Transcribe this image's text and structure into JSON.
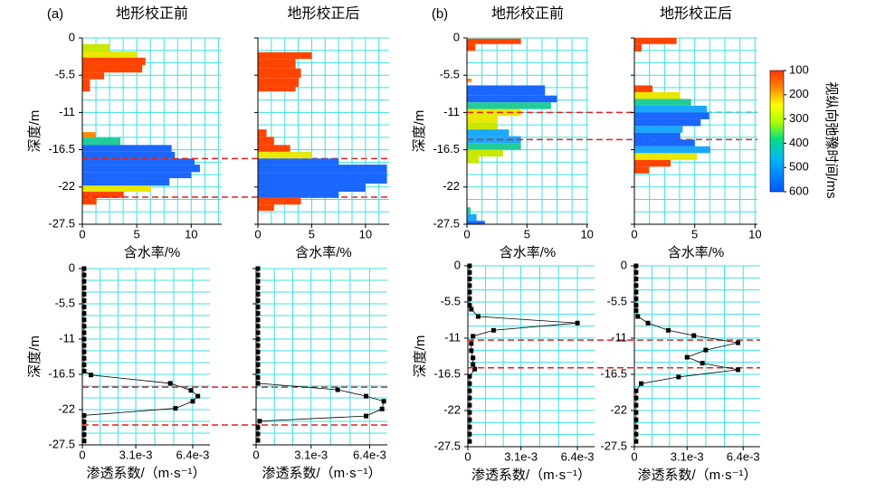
{
  "chart_data": [
    {
      "type": "hbar",
      "panel": "(a)",
      "title": "地形校正前",
      "xlabel": "含水率/%",
      "ylabel": "深度/m",
      "ytick_labels": true,
      "xlim": [
        0,
        12.8
      ],
      "xticks": [
        0,
        5,
        10
      ],
      "ylim": [
        -27.5,
        0
      ],
      "yticks": [
        0,
        -5.5,
        -11,
        -16.5,
        -22,
        -27.5
      ],
      "hlines": [
        -17.8,
        -23.5
      ],
      "y0": [
        -0.9,
        -2.0,
        -2.9,
        -4.0,
        -5.1,
        -6.1,
        -13.9,
        -14.7,
        -15.8,
        -16.8,
        -17.8,
        -18.7,
        -19.8,
        -20.7,
        -21.8,
        -22.7,
        -23.6
      ],
      "y1": [
        -2.0,
        -2.9,
        -4.0,
        -5.1,
        -6.1,
        -7.9,
        -14.7,
        -15.8,
        -16.8,
        -17.8,
        -18.7,
        -19.8,
        -20.7,
        -21.8,
        -22.7,
        -23.6,
        -24.6
      ],
      "values": [
        2.5,
        5,
        5.8,
        5.5,
        2,
        0.7,
        1.2,
        3.5,
        8.2,
        8.5,
        10.3,
        10.8,
        10,
        8,
        6.3,
        3.8,
        1.3
      ],
      "colors": [
        "#c8e800",
        "#e8e800",
        "#ff4400",
        "#ff4400",
        "#ff4400",
        "#ff4400",
        "#ff8800",
        "#22cc99",
        "#1a66ff",
        "#1a66ff",
        "#1a66ff",
        "#1a66ff",
        "#1a66ff",
        "#1a66ff",
        "#e8e800",
        "#ff4400",
        "#ff4400"
      ]
    },
    {
      "type": "hbar",
      "title": "地形校正后",
      "xlabel": "含水率/%",
      "ytick_labels": false,
      "xlim": [
        0,
        12.2
      ],
      "xticks": [
        0,
        5,
        10
      ],
      "ylim": [
        -27.5,
        0
      ],
      "yticks": [
        0,
        -5.5,
        -11,
        -16.5,
        -22,
        -27.5
      ],
      "y0": [
        -2.1,
        -3.1,
        -4.5,
        -5.9,
        -7.2,
        -13.5,
        -14.6,
        -15.8,
        -16.8,
        -17.8,
        -18.7,
        -20.0,
        -21.5,
        -22.7,
        -23.6,
        -24.6
      ],
      "y1": [
        -3.1,
        -4.5,
        -5.9,
        -7.2,
        -7.9,
        -14.6,
        -15.8,
        -16.8,
        -17.8,
        -18.7,
        -20.0,
        -21.5,
        -22.7,
        -23.6,
        -24.6,
        -25.5
      ],
      "values": [
        5,
        3.5,
        4,
        3.8,
        3.5,
        0.8,
        1.5,
        3,
        5,
        7.5,
        12,
        12,
        10,
        7.5,
        4,
        1.5
      ],
      "colors": [
        "#ff4400",
        "#ff4400",
        "#ff4400",
        "#ff4400",
        "#ff4400",
        "#ff4400",
        "#ff4400",
        "#ff4400",
        "#e8e800",
        "#1a66ff",
        "#1a66ff",
        "#1a66ff",
        "#1a66ff",
        "#1a66ff",
        "#ff4400",
        "#ff4400"
      ]
    },
    {
      "type": "hbar",
      "panel": "(b)",
      "title": "地形校正前",
      "xlabel": "含水率/%",
      "ylabel": "深度/m",
      "ytick_labels": true,
      "xlim": [
        0,
        10.1
      ],
      "xticks": [
        0,
        5,
        10
      ],
      "ylim": [
        -27.5,
        0
      ],
      "yticks": [
        0,
        -5.5,
        -11,
        -16.5,
        -22,
        -27.5
      ],
      "hlines": [
        -11,
        -15
      ],
      "y0": [
        -0.1,
        -0.9,
        -6.0,
        -7.0,
        -8.5,
        -9.5,
        -10.5,
        -11.5,
        -12.5,
        -13.5,
        -14.5,
        -15.5,
        -16.5,
        -17.5,
        -25.0,
        -26.0,
        -27.0
      ],
      "y1": [
        -0.9,
        -1.9,
        -6.5,
        -8.5,
        -9.5,
        -10.5,
        -11.5,
        -12.5,
        -13.5,
        -14.5,
        -15.5,
        -16.5,
        -17.5,
        -18.5,
        -26.0,
        -27.0,
        -27.5
      ],
      "values": [
        4.5,
        0.7,
        0.4,
        6.5,
        7.5,
        7,
        4.5,
        2.5,
        2.5,
        3.5,
        4.5,
        4.5,
        3,
        1,
        0.3,
        0.8,
        1.5
      ],
      "colors": [
        "#ff4400",
        "#ff4400",
        "#ff8800",
        "#1a66ff",
        "#1a66ff",
        "#22cc99",
        "#e8e800",
        "#e8e800",
        "#c8e800",
        "#1aa8ff",
        "#1aa8ff",
        "#22cc99",
        "#c8e800",
        "#c8e800",
        "#22cc99",
        "#1aa8ff",
        "#1a66ff"
      ]
    },
    {
      "type": "hbar",
      "title": "地形校正后",
      "xlabel": "含水率/%",
      "ytick_labels": false,
      "xlim": [
        0,
        10.2
      ],
      "xticks": [
        0,
        5,
        10
      ],
      "ylim": [
        -27.5,
        0
      ],
      "yticks": [
        0,
        -5.5,
        -11,
        -16.5,
        -22,
        -27.5
      ],
      "y0": [
        0,
        -0.9,
        -7,
        -8,
        -9,
        -10,
        -11,
        -12,
        -13,
        -14,
        -15,
        -16,
        -17,
        -18,
        -19
      ],
      "y1": [
        -0.9,
        -2,
        -8,
        -9,
        -10,
        -11,
        -12,
        -13,
        -14,
        -15,
        -16,
        -17,
        -18,
        -19,
        -20
      ],
      "values": [
        3.5,
        0.6,
        1.5,
        3.8,
        4.7,
        6,
        6.2,
        5.5,
        4,
        3.8,
        5,
        6.3,
        5.2,
        3,
        1.2
      ],
      "colors": [
        "#ff4400",
        "#ff4400",
        "#ff4400",
        "#e8e800",
        "#22cc99",
        "#1aa8ff",
        "#1a66ff",
        "#1a66ff",
        "#1aa8ff",
        "#1a66ff",
        "#1a66ff",
        "#1aa8ff",
        "#e8e800",
        "#ff4400",
        "#ff4400"
      ]
    },
    {
      "type": "line",
      "xlabel": "渗透系数/（m·s⁻¹）",
      "ylabel": "深度/m",
      "ytick_labels": true,
      "color": "#000000",
      "xlim": [
        0,
        0.0074
      ],
      "xticks": [
        0,
        {
          "value": 0.0031,
          "label": "3.1e-3"
        },
        {
          "value": 0.0064,
          "label": "6.4e-3"
        }
      ],
      "ylim": [
        -27.5,
        0
      ],
      "yticks": [
        0,
        -5.5,
        -11,
        -16.5,
        -22,
        -27.5
      ],
      "hlines": [
        -18.5,
        -24.4
      ],
      "depths": [
        0,
        -1,
        -2,
        -3,
        -4,
        -5,
        -6,
        -7,
        -8,
        -9,
        -10,
        -11,
        -12,
        -13,
        -14,
        -15,
        -16,
        -16.6,
        -17.9,
        -19,
        -19.9,
        -20.7,
        -21.8,
        -22.9,
        -23.9,
        -24.9,
        -25.9,
        -26.9
      ],
      "values": [
        0.0001,
        0.0001,
        0.0001,
        0.0001,
        0.0001,
        0.0001,
        0.0001,
        0.0001,
        0.0001,
        0.0001,
        0.0001,
        0.0001,
        0.0001,
        0.0001,
        0.0001,
        0.0001,
        0.0001,
        0.0005,
        0.0051,
        0.0063,
        0.0067,
        0.0064,
        0.0054,
        0.0001,
        0.0001,
        0.0001,
        0.0001,
        0.0001
      ]
    },
    {
      "type": "line",
      "xlabel": "渗透系数/（m·s⁻¹）",
      "ytick_labels": false,
      "color": "#000000",
      "xlim": [
        0,
        0.0074
      ],
      "xticks": [
        0,
        {
          "value": 0.0031,
          "label": "3.1e-3"
        },
        {
          "value": 0.0064,
          "label": "6.4e-3"
        }
      ],
      "ylim": [
        -27.5,
        0
      ],
      "yticks": [
        0,
        -5.5,
        -11,
        -16.5,
        -22,
        -27.5
      ],
      "depths": [
        0,
        -1,
        -2,
        -3,
        -4,
        -5,
        -6,
        -7,
        -8,
        -9,
        -10,
        -11,
        -12,
        -13,
        -14,
        -15,
        -16,
        -17,
        -17.9,
        -18.9,
        -19.9,
        -20.7,
        -21.9,
        -23,
        -23.8,
        -24.8,
        -25.8,
        -26.8
      ],
      "values": [
        0.0001,
        0.0001,
        0.0001,
        0.0001,
        0.0001,
        0.0001,
        0.0001,
        0.0001,
        0.0001,
        0.0001,
        0.0001,
        0.0001,
        0.0001,
        0.0001,
        0.0001,
        0.0001,
        0.0001,
        0.0001,
        0.0001,
        0.0046,
        0.0062,
        0.0072,
        0.0071,
        0.0062,
        0.0002,
        0.0001,
        0.0001,
        0.0001
      ]
    },
    {
      "type": "line",
      "xlabel": "渗透系数/（m·s⁻¹）",
      "ylabel": "深度/m",
      "ytick_labels": true,
      "color": "#000000",
      "xlim": [
        0,
        0.0074
      ],
      "xticks": [
        0,
        {
          "value": 0.0031,
          "label": "3.1e-3"
        },
        {
          "value": 0.0064,
          "label": "6.4e-3"
        }
      ],
      "ylim": [
        -27.5,
        0
      ],
      "yticks": [
        0,
        -5.5,
        -11,
        -16.5,
        -22,
        -27.5
      ],
      "hlines": [
        -11.3,
        -15.5
      ],
      "depths": [
        0,
        -1,
        -2,
        -3,
        -4,
        -5,
        -6,
        -6.6,
        -7.7,
        -8.7,
        -9.8,
        -10.7,
        -11.8,
        -12.9,
        -14,
        -15,
        -15.7,
        -16.8,
        -17.9,
        -19,
        -20.1,
        -21.2,
        -22.3,
        -23.4,
        -24.5,
        -25.6,
        -26.7
      ],
      "values": [
        0.0001,
        0.0001,
        0.0001,
        0.0001,
        0.0001,
        0.0001,
        0.0001,
        0.0002,
        0.0006,
        0.0064,
        0.0015,
        0.0003,
        0.0002,
        0.0002,
        0.0003,
        0.0003,
        0.0004,
        0.0001,
        0.0001,
        0.0001,
        0.0001,
        0.0001,
        0.0001,
        0.0001,
        0.0001,
        0.0001,
        0.0001
      ]
    },
    {
      "type": "line",
      "xlabel": "渗透系数/（m·s⁻¹）",
      "ytick_labels": true,
      "color": "#000000",
      "xlim": [
        0,
        0.0074
      ],
      "xticks": [
        0,
        {
          "value": 0.0031,
          "label": "3.1e-3"
        },
        {
          "value": 0.0064,
          "label": "6.4e-3"
        }
      ],
      "ylim": [
        -27.5,
        0
      ],
      "yticks": [
        0,
        -5.5,
        -11,
        -16.5,
        -22,
        -27.5
      ],
      "depths": [
        0,
        -1,
        -2,
        -3,
        -4,
        -5,
        -6,
        -6.8,
        -7.7,
        -8.7,
        -9.8,
        -10.6,
        -11.7,
        -12.8,
        -13.9,
        -14.8,
        -15.8,
        -16.9,
        -17.9,
        -19,
        -20.1,
        -21.2,
        -22.3,
        -23.4,
        -24.5,
        -25.6,
        -26.7
      ],
      "values": [
        0.0001,
        0.0001,
        0.0001,
        0.0001,
        0.0001,
        0.0001,
        0.0001,
        0.0001,
        0.0002,
        0.0008,
        0.002,
        0.0035,
        0.0061,
        0.0042,
        0.0031,
        0.004,
        0.0061,
        0.0026,
        0.0004,
        0.0001,
        0.0001,
        0.0001,
        0.0001,
        0.0001,
        0.0001,
        0.0001,
        0.0001
      ]
    }
  ],
  "colorbar": {
    "label": "视纵向弛豫时间/ms",
    "ticks": [
      100,
      200,
      300,
      400,
      500,
      600
    ],
    "lim": [
      100,
      600
    ],
    "colors": [
      "#ff3300",
      "#ff8800",
      "#ffff00",
      "#aaff00",
      "#00dd88",
      "#00bbee",
      "#0088ff",
      "#0055ff"
    ]
  }
}
